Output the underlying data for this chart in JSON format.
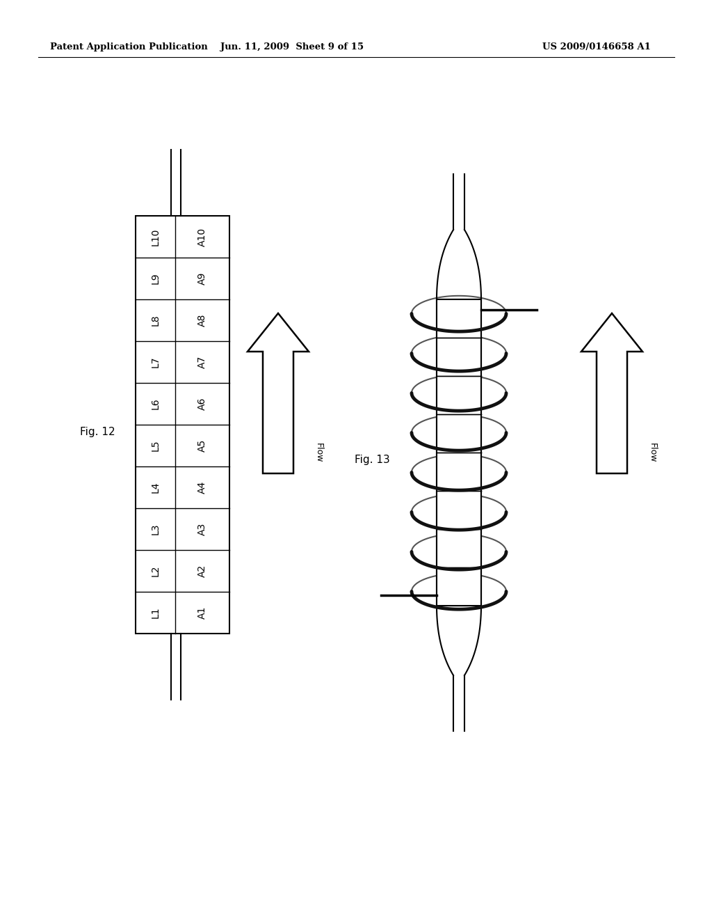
{
  "header_left": "Patent Application Publication",
  "header_mid": "Jun. 11, 2009  Sheet 9 of 15",
  "header_right": "US 2009/0146658 A1",
  "fig12_label": "Fig. 12",
  "fig13_label": "Fig. 13",
  "fig12_rows": [
    "L10",
    "L9",
    "L8",
    "L7",
    "L6",
    "L5",
    "L4",
    "L3",
    "L2",
    "L1"
  ],
  "fig12_right_labels": [
    "A10",
    "A9",
    "A8",
    "A7",
    "A6",
    "A5",
    "A4",
    "A3",
    "A2",
    "A1"
  ],
  "flow_label": "Flow",
  "bg_color": "#ffffff",
  "line_color": "#000000",
  "text_color": "#000000",
  "box_fill": "#ffffff",
  "box_edge": "#000000"
}
